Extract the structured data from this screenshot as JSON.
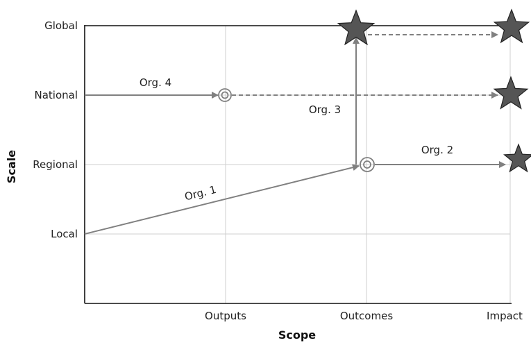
{
  "diagram": {
    "x_axis_title": "Scope",
    "y_axis_title": "Scale",
    "x_ticks": [
      "Outputs",
      "Outcomes",
      "Impact"
    ],
    "y_ticks": [
      "Global",
      "National",
      "Regional",
      "Local"
    ],
    "org_labels": {
      "org1": "Org. 1",
      "org2": "Org. 2",
      "org3": "Org. 3",
      "org4": "Org. 4"
    },
    "colors": {
      "arrow": "#808080",
      "star": "#555555",
      "grid": "#cfcfcf",
      "axis": "#111111"
    }
  }
}
